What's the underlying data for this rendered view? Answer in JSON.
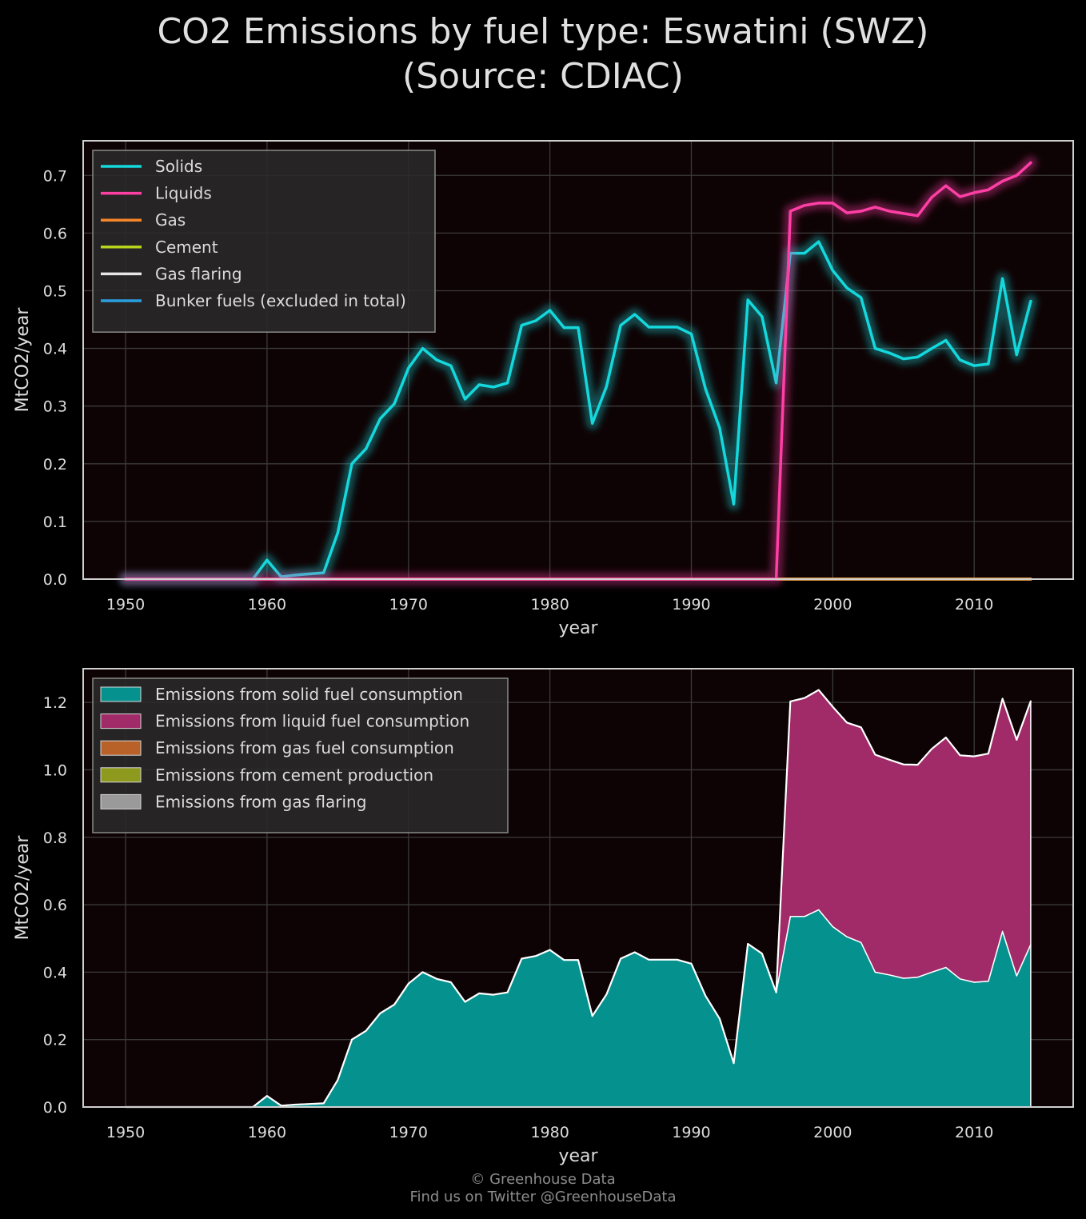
{
  "title": {
    "line1": "CO2 Emissions by fuel type: Eswatini (SWZ)",
    "line2": "(Source: CDIAC)"
  },
  "footer": {
    "line1": "© Greenhouse Data",
    "line2": "Find us on Twitter @GreenhouseData"
  },
  "colors": {
    "background": "#000000",
    "plot_bg": "#0e0304",
    "grid": "#3a3a3a",
    "frame": "#cfcfcf",
    "solids": "#14d8dc",
    "liquids": "#ff3fa6",
    "gas": "#f5862a",
    "cement": "#b8d41c",
    "flaring": "#e6e6e6",
    "bunker": "#2a9fe0",
    "area_solid": "#05928f",
    "area_liquid": "#a12a68",
    "area_gas": "#b8622a",
    "area_cement": "#8d9a1e",
    "area_flaring": "#9a9a9a"
  },
  "chart_data": [
    {
      "type": "line",
      "xlabel": "year",
      "ylabel": "MtCO2/year",
      "xlim": [
        1947,
        2017
      ],
      "ylim": [
        0,
        0.76
      ],
      "xticks": [
        1950,
        1960,
        1970,
        1980,
        1990,
        2000,
        2010
      ],
      "yticks": [
        0.0,
        0.1,
        0.2,
        0.3,
        0.4,
        0.5,
        0.6,
        0.7
      ],
      "grid": true,
      "legend_position": "top-left",
      "x": [
        1950,
        1951,
        1952,
        1953,
        1954,
        1955,
        1956,
        1957,
        1958,
        1959,
        1960,
        1961,
        1962,
        1963,
        1964,
        1965,
        1966,
        1967,
        1968,
        1969,
        1970,
        1971,
        1972,
        1973,
        1974,
        1975,
        1976,
        1977,
        1978,
        1979,
        1980,
        1981,
        1982,
        1983,
        1984,
        1985,
        1986,
        1987,
        1988,
        1989,
        1990,
        1991,
        1992,
        1993,
        1994,
        1995,
        1996,
        1997,
        1998,
        1999,
        2000,
        2001,
        2002,
        2003,
        2004,
        2005,
        2006,
        2007,
        2008,
        2009,
        2010,
        2011,
        2012,
        2013,
        2014
      ],
      "series": [
        {
          "name": "Solids",
          "color_key": "solids",
          "values": [
            0,
            0,
            0,
            0,
            0,
            0,
            0,
            0,
            0,
            0,
            0.033,
            0.004,
            0.007,
            0.009,
            0.011,
            0.08,
            0.2,
            0.226,
            0.278,
            0.304,
            0.366,
            0.4,
            0.38,
            0.37,
            0.312,
            0.337,
            0.333,
            0.34,
            0.44,
            0.448,
            0.466,
            0.436,
            0.436,
            0.27,
            0.334,
            0.44,
            0.459,
            0.437,
            0.437,
            0.437,
            0.425,
            0.33,
            0.262,
            0.13,
            0.484,
            0.455,
            0.34,
            0.565,
            0.565,
            0.585,
            0.535,
            0.505,
            0.488,
            0.4,
            0.392,
            0.382,
            0.385,
            0.4,
            0.414,
            0.38,
            0.37,
            0.373,
            0.521,
            0.389,
            0.482
          ]
        },
        {
          "name": "Liquids",
          "color_key": "liquids",
          "values": [
            0,
            0,
            0,
            0,
            0,
            0,
            0,
            0,
            0,
            0,
            0,
            0,
            0,
            0,
            0,
            0,
            0,
            0,
            0,
            0,
            0,
            0,
            0,
            0,
            0,
            0,
            0,
            0,
            0,
            0,
            0,
            0,
            0,
            0,
            0,
            0,
            0,
            0,
            0,
            0,
            0,
            0,
            0,
            0,
            0,
            0,
            0,
            0.638,
            0.648,
            0.652,
            0.652,
            0.635,
            0.638,
            0.645,
            0.638,
            0.634,
            0.63,
            0.662,
            0.682,
            0.663,
            0.67,
            0.675,
            0.69,
            0.7,
            0.722
          ]
        },
        {
          "name": "Gas",
          "color_key": "gas",
          "values": [
            0,
            0,
            0,
            0,
            0,
            0,
            0,
            0,
            0,
            0,
            0,
            0,
            0,
            0,
            0,
            0,
            0,
            0,
            0,
            0,
            0,
            0,
            0,
            0,
            0,
            0,
            0,
            0,
            0,
            0,
            0,
            0,
            0,
            0,
            0,
            0,
            0,
            0,
            0,
            0,
            0,
            0,
            0,
            0,
            0,
            0,
            0,
            0,
            0,
            0,
            0,
            0,
            0,
            0,
            0,
            0,
            0,
            0,
            0,
            0,
            0,
            0,
            0,
            0,
            0
          ]
        },
        {
          "name": "Cement",
          "color_key": "cement",
          "values": [
            0,
            0,
            0,
            0,
            0,
            0,
            0,
            0,
            0,
            0,
            0,
            0,
            0,
            0,
            0,
            0,
            0,
            0,
            0,
            0,
            0,
            0,
            0,
            0,
            0,
            0,
            0,
            0,
            0,
            0,
            0,
            0,
            0,
            0,
            0,
            0,
            0,
            0,
            0,
            0,
            0,
            0,
            0,
            0,
            0,
            0,
            0,
            0,
            0,
            0,
            0,
            0,
            0,
            0,
            0,
            0,
            0,
            0,
            0,
            0,
            0,
            0,
            0,
            0,
            0
          ]
        },
        {
          "name": "Gas flaring",
          "color_key": "flaring",
          "values": [
            0,
            0,
            0,
            0,
            0,
            0,
            0,
            0,
            0,
            0,
            0,
            0,
            0,
            0,
            0,
            0,
            0,
            0,
            0,
            0,
            0,
            0,
            0,
            0,
            0,
            0,
            0,
            0,
            0,
            0,
            0,
            0,
            0,
            0,
            0,
            0,
            0,
            0,
            0,
            0,
            0,
            0,
            0,
            0,
            0,
            0,
            0,
            0,
            0,
            0,
            0,
            0,
            0,
            0,
            0,
            0,
            0,
            0,
            0,
            0,
            0,
            0,
            0,
            0,
            0
          ]
        },
        {
          "name": "Bunker fuels (excluded in total)",
          "color_key": "bunker",
          "values": [
            0,
            0,
            0,
            0,
            0,
            0,
            0,
            0,
            0,
            0,
            0,
            0,
            0,
            0,
            0,
            0,
            0,
            0,
            0,
            0,
            0,
            0,
            0,
            0,
            0,
            0,
            0,
            0,
            0,
            0,
            0,
            0,
            0,
            0,
            0,
            0,
            0,
            0,
            0,
            0,
            0,
            0,
            0,
            0,
            0,
            0,
            0,
            0,
            0,
            0,
            0,
            0,
            0,
            0,
            0,
            0,
            0,
            0,
            0,
            0,
            0,
            0,
            0,
            0,
            0
          ]
        }
      ]
    },
    {
      "type": "area",
      "stacked": true,
      "xlabel": "year",
      "ylabel": "MtCO2/year",
      "xlim": [
        1947,
        2017
      ],
      "ylim": [
        0,
        1.3
      ],
      "xticks": [
        1950,
        1960,
        1970,
        1980,
        1990,
        2000,
        2010
      ],
      "yticks": [
        0.0,
        0.2,
        0.4,
        0.6,
        0.8,
        1.0,
        1.2
      ],
      "grid": true,
      "legend_position": "top-left",
      "series": [
        {
          "name": "Emissions from solid fuel consumption",
          "color_key": "area_solid",
          "source_series": "Solids"
        },
        {
          "name": "Emissions from liquid fuel consumption",
          "color_key": "area_liquid",
          "source_series": "Liquids"
        },
        {
          "name": "Emissions from gas fuel consumption",
          "color_key": "area_gas",
          "source_series": "Gas"
        },
        {
          "name": "Emissions from cement production",
          "color_key": "area_cement",
          "source_series": "Cement"
        },
        {
          "name": "Emissions from gas flaring",
          "color_key": "area_flaring",
          "source_series": "Gas flaring"
        }
      ]
    }
  ]
}
